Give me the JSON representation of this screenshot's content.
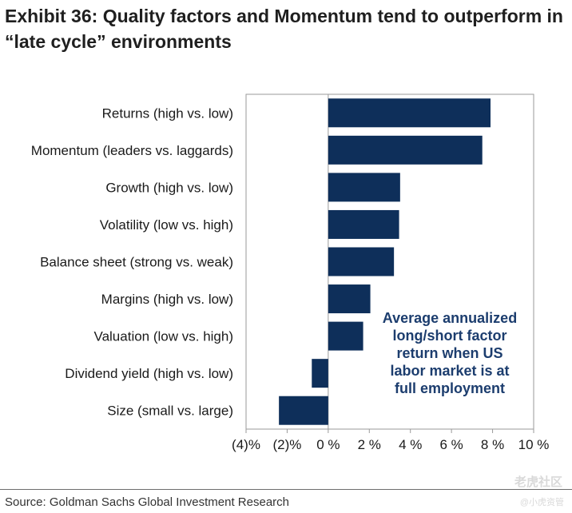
{
  "title": {
    "line1": "Exhibit 36: Quality factors and Momentum tend to outperform in",
    "line2": "“late cycle” environments"
  },
  "source": "Source: Goldman Sachs Global Investment Research",
  "watermark": {
    "text": "老虎社区",
    "sub": "@小虎资管"
  },
  "colors": {
    "bar": "#0e2f5a",
    "annotation": "#1c3d6e"
  },
  "chart_data": {
    "type": "bar",
    "orientation": "horizontal",
    "categories": [
      "Returns (high vs. low)",
      "Momentum (leaders vs. laggards)",
      "Growth (high vs. low)",
      "Volatility (low vs. high)",
      "Balance sheet (strong vs. weak)",
      "Margins (high vs. low)",
      "Valuation (low vs. high)",
      "Dividend yield (high vs. low)",
      "Size (small vs. large)"
    ],
    "values": [
      7.9,
      7.5,
      3.5,
      3.45,
      3.2,
      2.05,
      1.7,
      -0.8,
      -2.4
    ],
    "xlim": [
      -4,
      10
    ],
    "xticks": [
      -4,
      -2,
      0,
      2,
      4,
      6,
      8,
      10
    ],
    "xtick_labels": [
      "(4)%",
      "(2)%",
      "0 %",
      "2 %",
      "4 %",
      "6 %",
      "8 %",
      "10 %"
    ],
    "annotation": [
      "Average annualized",
      "long/short factor",
      "return when US",
      "labor market is at",
      "full employment"
    ],
    "grid": false,
    "legend": "none"
  }
}
